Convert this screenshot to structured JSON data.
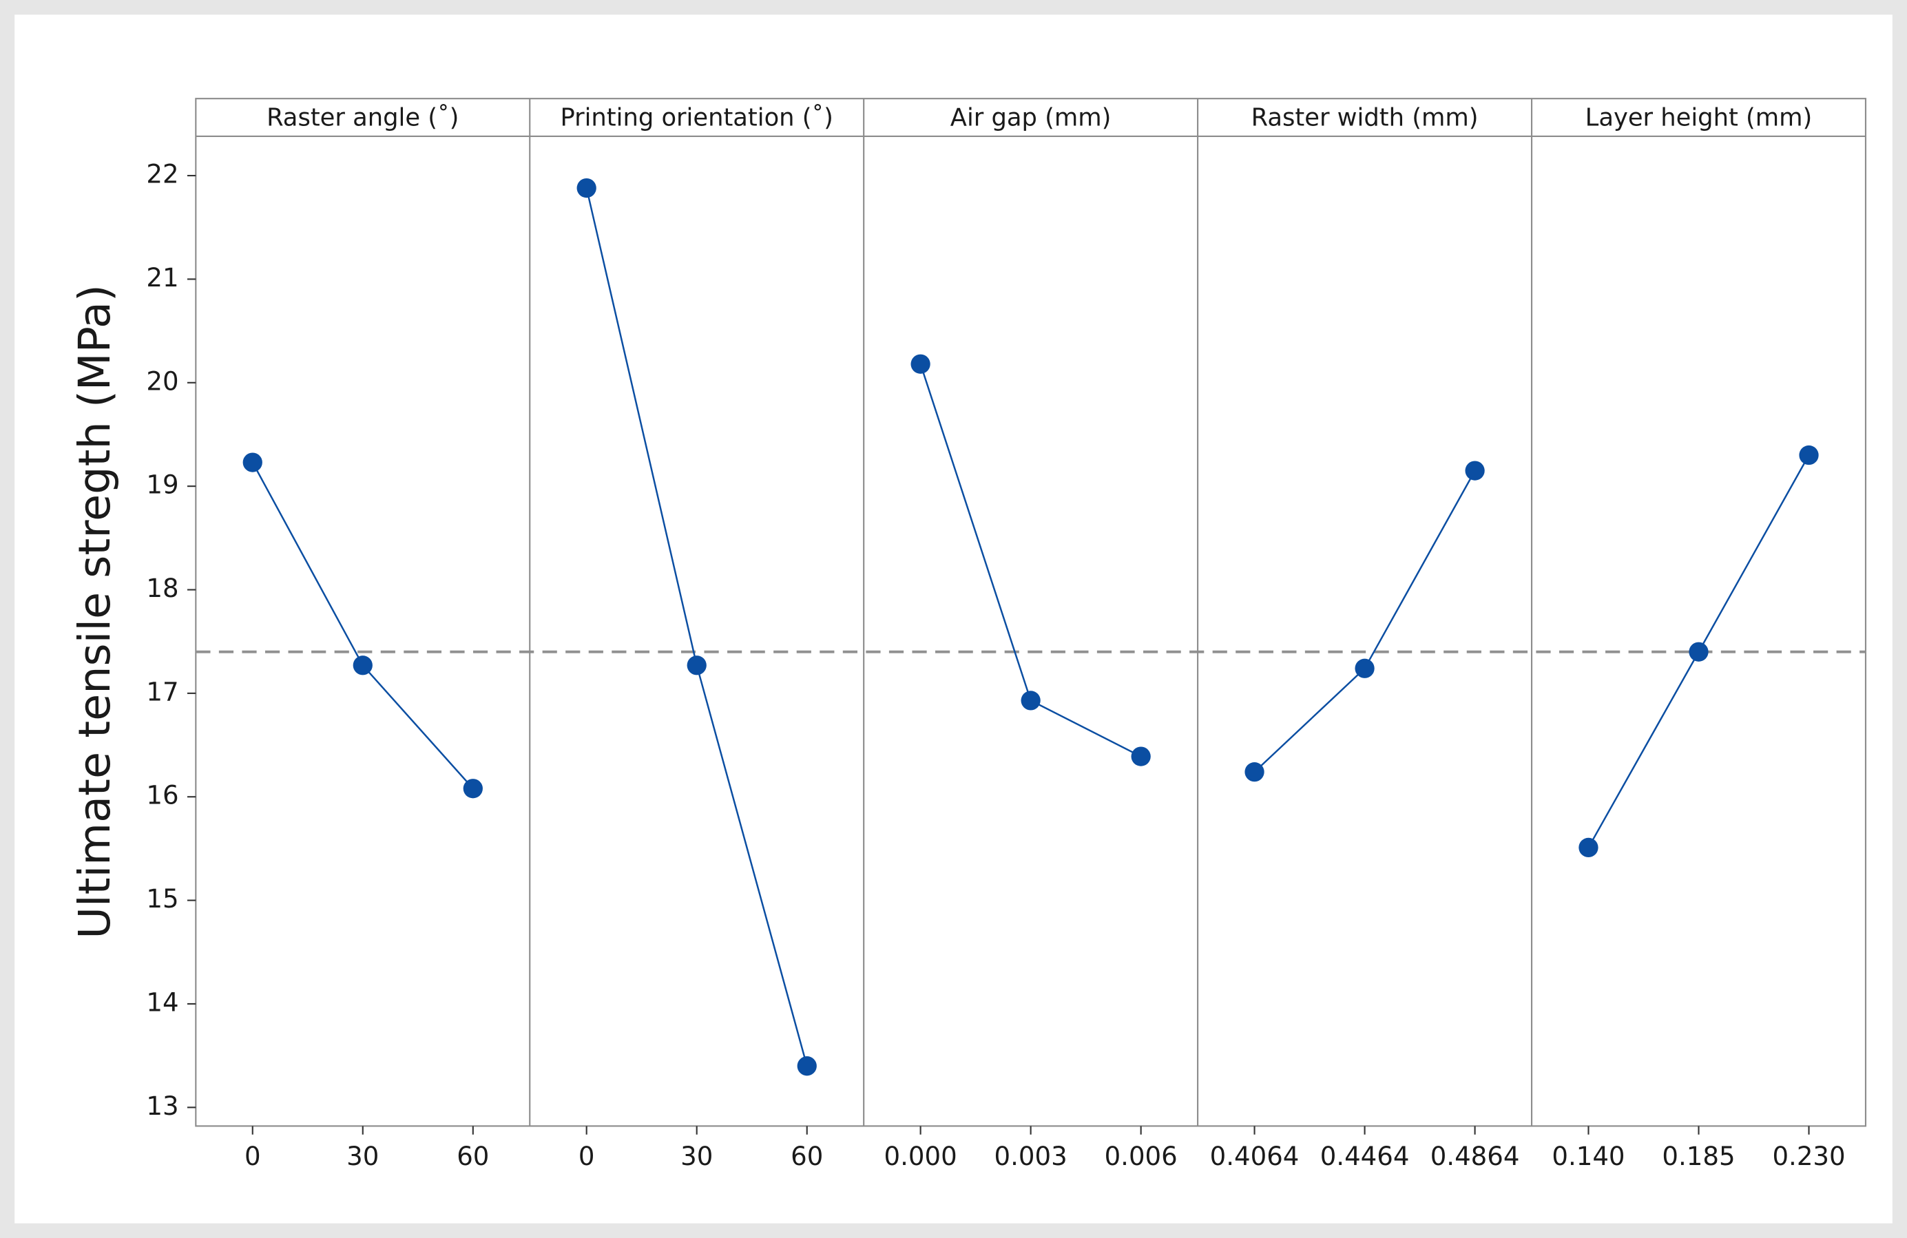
{
  "chart_data": {
    "type": "line",
    "y_label": "Ultimate tensile stregth (MPa)",
    "ylim": [
      12.82,
      22.38
    ],
    "yticks": [
      13,
      14,
      15,
      16,
      17,
      18,
      19,
      20,
      21,
      22
    ],
    "mean": 17.4,
    "color": "#0b4ea2",
    "mean_color": "#909090",
    "panels": [
      {
        "title": "Raster angle (˚)",
        "categories": [
          "0",
          "30",
          "60"
        ],
        "values": [
          19.23,
          17.27,
          16.08
        ]
      },
      {
        "title": "Printing orientation (˚)",
        "categories": [
          "0",
          "30",
          "60"
        ],
        "values": [
          21.88,
          17.27,
          13.4
        ]
      },
      {
        "title": "Air gap (mm)",
        "categories": [
          "0.000",
          "0.003",
          "0.006"
        ],
        "values": [
          20.18,
          16.93,
          16.39
        ]
      },
      {
        "title": "Raster width (mm)",
        "categories": [
          "0.4064",
          "0.4464",
          "0.4864"
        ],
        "values": [
          16.24,
          17.24,
          19.15
        ]
      },
      {
        "title": "Layer height (mm)",
        "categories": [
          "0.140",
          "0.185",
          "0.230"
        ],
        "values": [
          15.51,
          17.4,
          19.3
        ]
      }
    ]
  }
}
